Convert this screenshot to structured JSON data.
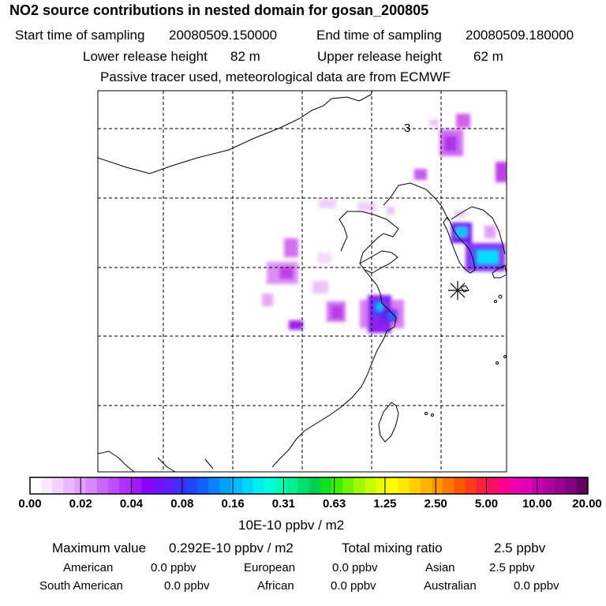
{
  "header": {
    "title": "NO2 source contributions in nested domain for gosan_200805",
    "start_label": "Start time of sampling",
    "start_value": "20080509.150000",
    "end_label": "End time of sampling",
    "end_value": "20080509.180000",
    "lower_label": "Lower release height",
    "lower_value": "82 m",
    "upper_label": "Upper release height",
    "upper_value": "62 m",
    "note": "Passive tracer used, meteorological data are from ECMWF"
  },
  "map": {
    "contour_label": "3",
    "receptor_marker": "asterisk-icon",
    "colors": {
      "violet_light": "#e8b4f8",
      "violet": "#c040f0",
      "purple": "#8a00e8",
      "blue": "#3a2cff",
      "cyan": "#00d8ff",
      "coast": "#000000"
    }
  },
  "colorbar": {
    "tick_labels": [
      "0.00",
      "0.02",
      "0.04",
      "0.08",
      "0.16",
      "0.31",
      "0.63",
      "1.25",
      "2.50",
      "5.00",
      "10.00",
      "20.00"
    ],
    "colors": [
      "#ffffff",
      "#fbe8ff",
      "#f4d0ff",
      "#ebb8ff",
      "#e0a0ff",
      "#d888ff",
      "#cc66ff",
      "#c04cff",
      "#b030ff",
      "#a018ff",
      "#8c00ff",
      "#7410ff",
      "#5a20ff",
      "#3c30ff",
      "#2046ff",
      "#1060ff",
      "#0880ff",
      "#00a0ff",
      "#00bcff",
      "#00d4ff",
      "#00f0f0",
      "#00ffd8",
      "#00ffb0",
      "#00f090",
      "#00e070",
      "#00d050",
      "#10e020",
      "#40ee00",
      "#70f400",
      "#a0fa00",
      "#c8ff00",
      "#e8ff00",
      "#ffff00",
      "#ffe800",
      "#ffd000",
      "#ffb400",
      "#ff9800",
      "#ff7800",
      "#ff5a00",
      "#ff3c20",
      "#ff2040",
      "#ff1060",
      "#ff0090",
      "#f000a8",
      "#e000b8",
      "#c800b0",
      "#b000a0",
      "#980090",
      "#800080",
      "#600060"
    ],
    "units": "10E-10 ppbv / m2"
  },
  "summary": {
    "max_label": "Maximum value",
    "max_value": "0.292E-10 ppbv / m2",
    "total_label": "Total mixing ratio",
    "total_value": "2.5 ppbv",
    "regions": [
      {
        "name": "American",
        "value": "0.0 ppbv"
      },
      {
        "name": "European",
        "value": "0.0 ppbv"
      },
      {
        "name": "Asian",
        "value": "2.5 ppbv"
      },
      {
        "name": "South American",
        "value": "0.0 ppbv"
      },
      {
        "name": "African",
        "value": "0.0 ppbv"
      },
      {
        "name": "Australian",
        "value": "0.0 ppbv"
      }
    ]
  }
}
